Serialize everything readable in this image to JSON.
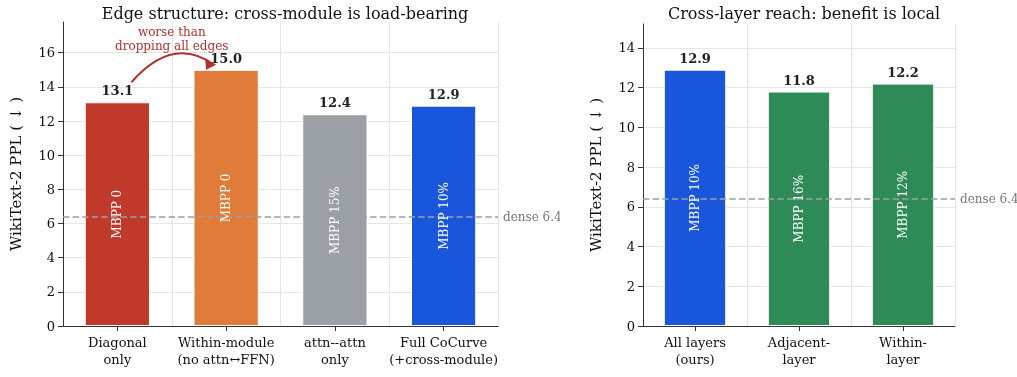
{
  "chart_data": [
    {
      "type": "bar",
      "title": "Edge structure: cross-module is load-bearing",
      "ylabel": "WikiText-2 PPL ( ↓ )",
      "categories": [
        "Diagonal\nonly",
        "Within-module\n(no attn↔FFN)",
        "attn--attn\nonly",
        "Full CoCurve\n(+cross-module)"
      ],
      "values": [
        13.1,
        15.0,
        12.4,
        12.9
      ],
      "colors": [
        "#c0392b",
        "#e07b39",
        "#9aa0a6",
        "#1a56db"
      ],
      "value_labels": [
        "13.1",
        "15.0",
        "12.4",
        "12.9"
      ],
      "ylim": [
        0,
        17.8
      ],
      "yticks": [
        0,
        2,
        4,
        6,
        8,
        10,
        12,
        14,
        16
      ],
      "grid": true,
      "ref_lines": [
        {
          "axis": "y",
          "value": 6.4,
          "label": "dense 6.4",
          "color": "#9aa0a6",
          "line_style": "dashed"
        }
      ],
      "annotations": [
        "MBPP 0",
        "MBPP 0",
        "MBPP 15%",
        "MBPP 10%",
        "worse than\ndropping all edges"
      ]
    },
    {
      "type": "bar",
      "title": "Cross-layer reach: benefit is local",
      "ylabel": "WikiText-2 PPL ( ↓ )",
      "categories": [
        "All layers\n(ours)",
        "Adjacent-\nlayer",
        "Within-\nlayer"
      ],
      "values": [
        12.9,
        11.8,
        12.2
      ],
      "colors": [
        "#1a56db",
        "#2e8b57",
        "#2e8b57"
      ],
      "value_labels": [
        "12.9",
        "11.8",
        "12.2"
      ],
      "ylim": [
        0,
        15.2
      ],
      "yticks": [
        0,
        2,
        4,
        6,
        8,
        10,
        12,
        14
      ],
      "grid": true,
      "ref_lines": [
        {
          "axis": "y",
          "value": 6.4,
          "label": "dense 6.4",
          "color": "#9aa0a6",
          "line_style": "dashed"
        }
      ],
      "annotations": [
        "MBPP 10%",
        "MBPP 16%",
        "MBPP 12%"
      ]
    }
  ]
}
